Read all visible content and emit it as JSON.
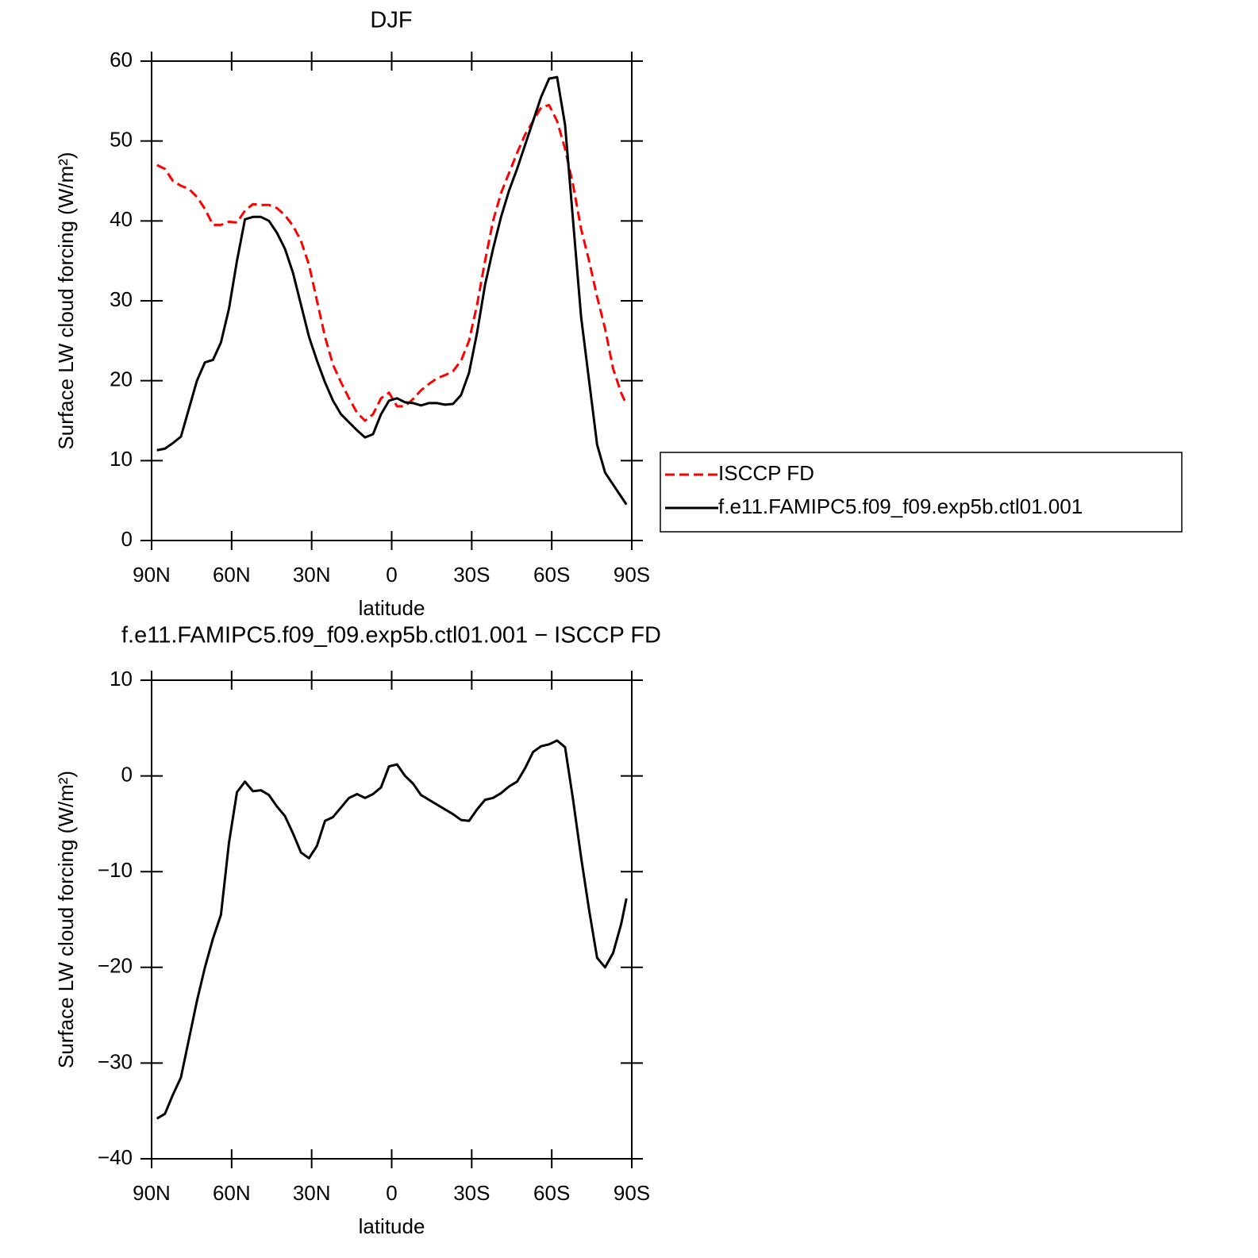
{
  "chart_data": [
    {
      "type": "line",
      "title": "DJF",
      "xlabel": "latitude",
      "ylabel": "Surface LW cloud forcing (W/m²)",
      "x": [
        88,
        85,
        82,
        79,
        76,
        73,
        70,
        67,
        64,
        61,
        58,
        55,
        52,
        49,
        46,
        43,
        40,
        37,
        34,
        31,
        28,
        25,
        22,
        19,
        16,
        13,
        10,
        7,
        4,
        1,
        -2,
        -5,
        -8,
        -11,
        -14,
        -17,
        -20,
        -23,
        -26,
        -29,
        -32,
        -35,
        -38,
        -41,
        -44,
        -47,
        -50,
        -53,
        -56,
        -59,
        -62,
        -65,
        -68,
        -71,
        -74,
        -77,
        -80,
        -83,
        -86,
        -88
      ],
      "xlim": [
        90,
        -90
      ],
      "xticks": [
        {
          "value": 90,
          "label": "90N"
        },
        {
          "value": 60,
          "label": "60N"
        },
        {
          "value": 30,
          "label": "30N"
        },
        0,
        {
          "value": -30,
          "label": "30S"
        },
        {
          "value": -60,
          "label": "60S"
        },
        {
          "value": -90,
          "label": "90S"
        }
      ],
      "ylim": [
        0,
        60
      ],
      "yticks": [
        0,
        10,
        20,
        30,
        40,
        50,
        60
      ],
      "legend": "right",
      "series": [
        {
          "name": "ISCCP FD",
          "color": "#ff0000",
          "linestyle": "dashed",
          "values": [
            47,
            46.5,
            45,
            44.4,
            44,
            43,
            41.5,
            39.5,
            39.5,
            39.9,
            39.8,
            41.3,
            42.1,
            42,
            42,
            41.6,
            40.7,
            39.4,
            37.5,
            34.5,
            30,
            25.5,
            22,
            19.8,
            17.8,
            16,
            15,
            15.8,
            17.8,
            18.5,
            16.8,
            16.8,
            17.7,
            18.8,
            19.6,
            20.3,
            20.7,
            21.2,
            22.5,
            25,
            29.5,
            35,
            40,
            43.5,
            46,
            48.5,
            50.8,
            52.5,
            54.2,
            54.5,
            52.5,
            49,
            44.5,
            39,
            35,
            30.5,
            26.5,
            21.5,
            18.5,
            17
          ]
        },
        {
          "name": "f.e11.FAMIPC5.f09_f09.exp5b.ctl01.001",
          "color": "#000000",
          "linestyle": "solid",
          "values": [
            11.3,
            11.5,
            12.2,
            13,
            16.5,
            20,
            22.3,
            22.6,
            24.8,
            29,
            35,
            40.2,
            40.5,
            40.5,
            40,
            38.5,
            36.5,
            33.5,
            29.5,
            25.5,
            22.5,
            19.8,
            17.5,
            15.8,
            14.8,
            13.8,
            12.9,
            13.3,
            15.8,
            17.5,
            17.8,
            17.3,
            17.2,
            16.9,
            17.2,
            17.2,
            17,
            17.1,
            18.2,
            21,
            26,
            32,
            36.5,
            40.5,
            43.8,
            46.5,
            49.5,
            52.5,
            55.5,
            57.8,
            58,
            52,
            40,
            28,
            20,
            12,
            8.5,
            7,
            5.5,
            4.5
          ]
        }
      ]
    },
    {
      "type": "line",
      "title": "f.e11.FAMIPC5.f09_f09.exp5b.ctl01.001 − ISCCP FD",
      "xlabel": "latitude",
      "ylabel": "Surface LW cloud forcing (W/m²)",
      "x": [
        88,
        85,
        82,
        79,
        76,
        73,
        70,
        67,
        64,
        61,
        58,
        55,
        52,
        49,
        46,
        43,
        40,
        37,
        34,
        31,
        28,
        25,
        22,
        19,
        16,
        13,
        10,
        7,
        4,
        1,
        -2,
        -5,
        -8,
        -11,
        -14,
        -17,
        -20,
        -23,
        -26,
        -29,
        -32,
        -35,
        -38,
        -41,
        -44,
        -47,
        -50,
        -53,
        -56,
        -59,
        -62,
        -65,
        -68,
        -71,
        -74,
        -77,
        -80,
        -83,
        -86,
        -88
      ],
      "xlim": [
        90,
        -90
      ],
      "xticks": [
        {
          "value": 90,
          "label": "90N"
        },
        {
          "value": 60,
          "label": "60N"
        },
        {
          "value": 30,
          "label": "30N"
        },
        0,
        {
          "value": -30,
          "label": "30S"
        },
        {
          "value": -60,
          "label": "60S"
        },
        {
          "value": -90,
          "label": "90S"
        }
      ],
      "ylim": [
        -40,
        10
      ],
      "yticks": [
        {
          "value": -40,
          "label": "−40"
        },
        {
          "value": -30,
          "label": "−30"
        },
        {
          "value": -20,
          "label": "−20"
        },
        {
          "value": -10,
          "label": "−10"
        },
        0,
        10
      ],
      "series": [
        {
          "color": "#000000",
          "linestyle": "solid",
          "values": [
            -35.8,
            -35.3,
            -33.3,
            -31.5,
            -27.5,
            -23.5,
            -20,
            -17,
            -14.5,
            -7,
            -1.7,
            -0.6,
            -1.6,
            -1.5,
            -2,
            -3.2,
            -4.2,
            -6,
            -8,
            -8.6,
            -7.3,
            -4.7,
            -4.3,
            -3.3,
            -2.3,
            -1.9,
            -2.3,
            -1.9,
            -1.2,
            1,
            1.2,
            0,
            -0.8,
            -2,
            -2.5,
            -3,
            -3.5,
            -4,
            -4.6,
            -4.7,
            -3.5,
            -2.5,
            -2.3,
            -1.8,
            -1.1,
            -0.6,
            0.8,
            2.5,
            3.1,
            3.3,
            3.7,
            3,
            -2.5,
            -8.5,
            -14,
            -19,
            -20,
            -18.5,
            -15.5,
            -12.8
          ]
        }
      ]
    }
  ]
}
